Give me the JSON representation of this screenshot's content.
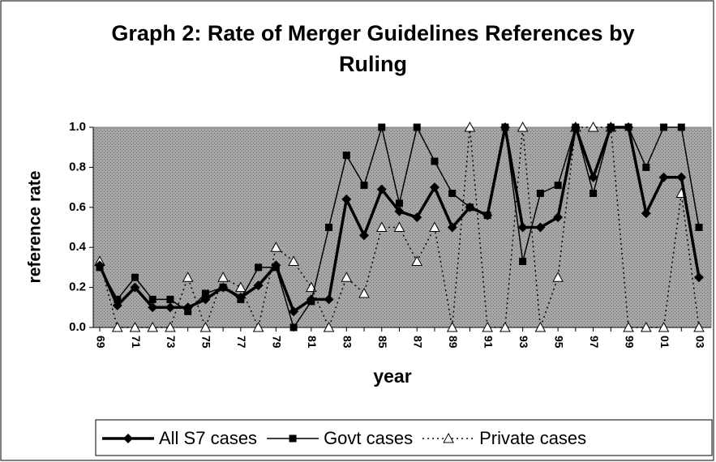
{
  "chart_data": {
    "type": "line",
    "title": "Graph 2: Rate of Merger Guidelines References by Ruling",
    "x_label": "year",
    "y_label": "reference rate",
    "categories": [
      "69",
      null,
      "71",
      null,
      "73",
      null,
      "75",
      null,
      "77",
      null,
      "79",
      null,
      "81",
      null,
      "83",
      null,
      "85",
      null,
      "87",
      null,
      "89",
      null,
      "91",
      null,
      "93",
      null,
      "95",
      null,
      "97",
      null,
      "99",
      null,
      "01",
      null,
      "03"
    ],
    "ylim": [
      0,
      1
    ],
    "yticks": [
      {
        "value": 0,
        "label": "0.0"
      },
      0.2,
      0.4,
      0.6,
      0.8,
      {
        "value": 1,
        "label": "1.0"
      }
    ],
    "legend": "bottom",
    "series": [
      {
        "name": "All S7 cases",
        "color": "#000000",
        "line_style": "solid",
        "marker": "diamond",
        "values": [
          0.31,
          0.11,
          0.2,
          0.1,
          0.1,
          0.1,
          0.14,
          0.2,
          0.15,
          0.21,
          0.31,
          0.08,
          0.14,
          0.14,
          0.64,
          0.46,
          0.69,
          0.58,
          0.55,
          0.7,
          0.5,
          0.6,
          0.56,
          1.0,
          0.5,
          0.5,
          0.55,
          1.0,
          0.75,
          1.0,
          1.0,
          0.57,
          0.75,
          0.75,
          0.25
        ]
      },
      {
        "name": "Govt cases",
        "color": "#000000",
        "line_style": "solid",
        "marker": "square",
        "values": [
          0.3,
          0.14,
          0.25,
          0.14,
          0.14,
          0.08,
          0.17,
          0.2,
          0.14,
          0.3,
          0.3,
          0.0,
          0.13,
          0.5,
          0.86,
          0.71,
          1.0,
          0.62,
          1.0,
          0.83,
          0.67,
          0.6,
          0.56,
          1.0,
          0.33,
          0.67,
          0.71,
          1.0,
          0.67,
          1.0,
          1.0,
          0.8,
          1.0,
          1.0,
          0.5
        ]
      },
      {
        "name": "Private cases",
        "color": "#000000",
        "line_style": "dotted",
        "marker": "triangle",
        "values": [
          0.33,
          0.0,
          0.0,
          0.0,
          0.0,
          0.25,
          0.0,
          0.25,
          0.2,
          0.0,
          0.4,
          0.33,
          0.2,
          0.0,
          0.25,
          0.17,
          0.5,
          0.5,
          0.33,
          0.5,
          0.0,
          1.0,
          0.0,
          0.0,
          1.0,
          0.0,
          0.25,
          1.0,
          1.0,
          1.0,
          0.0,
          0.0,
          0.0,
          0.67,
          0.0
        ]
      }
    ]
  }
}
